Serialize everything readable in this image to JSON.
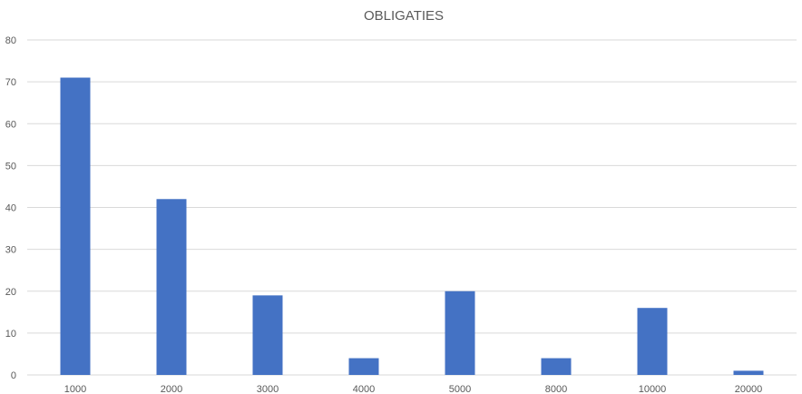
{
  "chart_data": {
    "type": "bar",
    "title": "OBLIGATIES",
    "xlabel": "",
    "ylabel": "",
    "categories": [
      "1000",
      "2000",
      "3000",
      "4000",
      "5000",
      "8000",
      "10000",
      "20000"
    ],
    "values": [
      71,
      42,
      19,
      4,
      20,
      4,
      16,
      1
    ],
    "ylim": [
      0,
      80
    ],
    "yticks": [
      "0",
      "10",
      "20",
      "30",
      "40",
      "50",
      "60",
      "70",
      "80"
    ],
    "grid": true,
    "legend": "none",
    "colors": {
      "bar": "#4472c4",
      "grid": "#d9d9d9",
      "text": "#595959"
    }
  }
}
